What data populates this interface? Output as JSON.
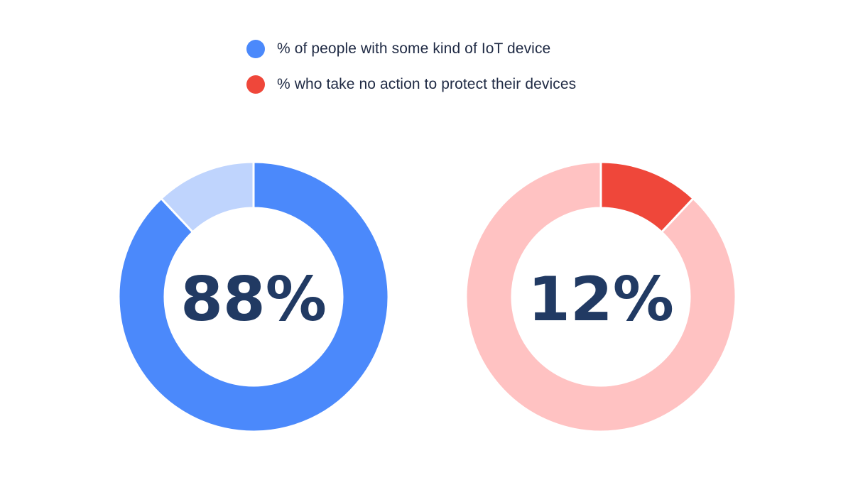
{
  "legend": [
    {
      "label": "% of people with some kind of IoT device",
      "color": "#4b89fb"
    },
    {
      "label": "% who take no action to protect their devices",
      "color": "#ef473a"
    }
  ],
  "chart_data": [
    {
      "type": "pie",
      "center_label": "88%",
      "slices": [
        {
          "value": 88,
          "color": "#4b89fb"
        },
        {
          "value": 12,
          "color": "#bfd4fd"
        }
      ]
    },
    {
      "type": "pie",
      "center_label": "12%",
      "slices": [
        {
          "value": 12,
          "color": "#ef473a"
        },
        {
          "value": 88,
          "color": "#ffc2c2"
        }
      ]
    }
  ]
}
